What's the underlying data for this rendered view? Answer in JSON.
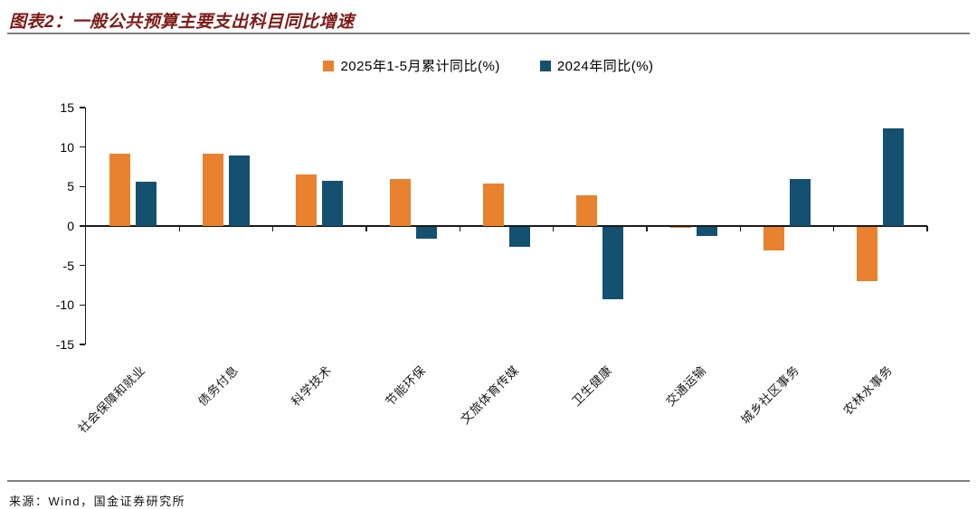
{
  "page": {
    "title": "图表2：一般公共预算主要支出科目同比增速",
    "source": "来源：Wind，国金证券研究所"
  },
  "chart_data": {
    "type": "bar",
    "title": "一般公共预算主要支出科目同比增速",
    "categories": [
      "社会保障和就业",
      "债务付息",
      "科学技术",
      "节能环保",
      "文旅体育传媒",
      "卫生健康",
      "交通运输",
      "城乡社区事务",
      "农林水事务"
    ],
    "series": [
      {
        "name": "2025年1-5月累计同比(%)",
        "color": "#E8822E",
        "values": [
          9.2,
          9.2,
          6.5,
          6.0,
          5.4,
          3.9,
          -0.2,
          -3.0,
          -6.9
        ]
      },
      {
        "name": "2024年同比(%)",
        "color": "#14506F",
        "values": [
          5.6,
          8.9,
          5.7,
          -1.5,
          -2.5,
          -9.2,
          -1.2,
          6.0,
          12.4
        ]
      }
    ],
    "ylim": [
      -15,
      15
    ],
    "yticks": [
      15,
      10,
      5,
      0,
      -5,
      -10,
      -15
    ],
    "grid": false,
    "legend_position": "top-center",
    "xlabel": "",
    "ylabel": ""
  },
  "colors": {
    "title_accent": "#7E1A15",
    "separator": "#7F7F7F",
    "axis": "#1A1A1A"
  }
}
